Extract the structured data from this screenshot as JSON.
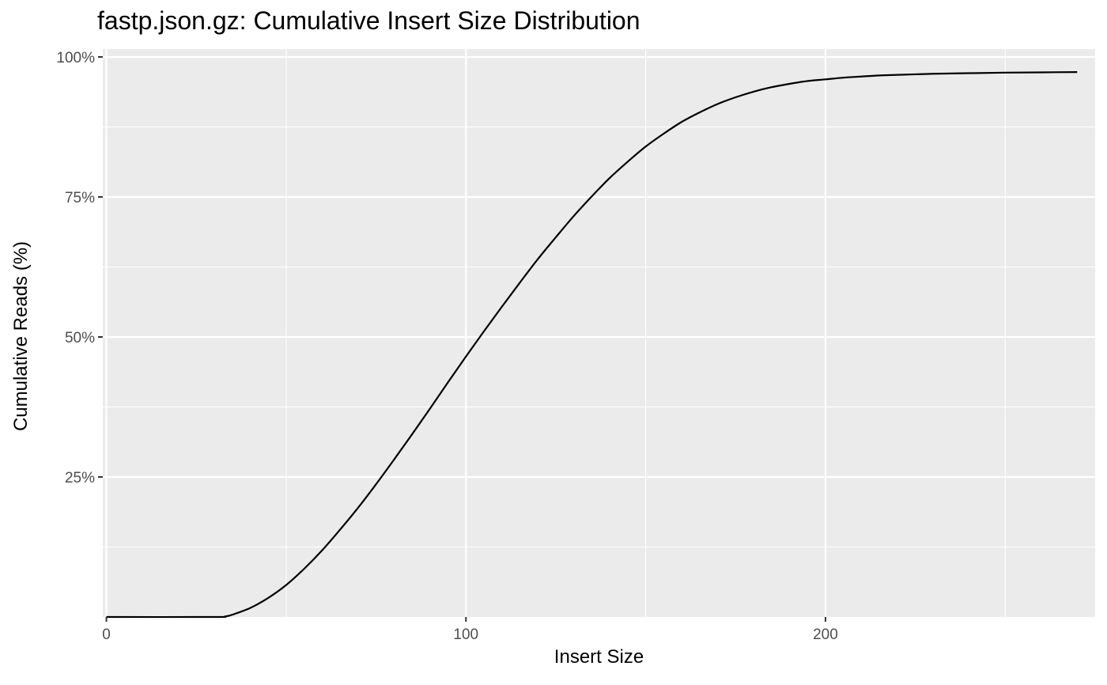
{
  "chart_data": {
    "type": "line",
    "title": "fastp.json.gz: Cumulative Insert Size Distribution",
    "xlabel": "Insert Size",
    "ylabel": "Cumulative Reads (%)",
    "xlim": [
      -1,
      275
    ],
    "ylim": [
      0,
      100
    ],
    "x_ticks": [
      0,
      100,
      200
    ],
    "x_tick_labels": [
      "0",
      "100",
      "200"
    ],
    "y_ticks": [
      25,
      50,
      75,
      100
    ],
    "y_tick_labels": [
      "25%",
      "50%",
      "75%",
      "100%"
    ],
    "grid": true,
    "legend": "none",
    "colors": {
      "panel": "#ebebeb",
      "grid": "#ffffff",
      "line": "#000000",
      "tick_label": "#4d4d4d",
      "tick_mark": "#333333"
    },
    "series": [
      {
        "x": [
          0,
          30,
          33,
          35,
          40,
          45,
          50,
          55,
          60,
          65,
          70,
          75,
          80,
          85,
          90,
          95,
          100,
          105,
          110,
          115,
          120,
          125,
          130,
          135,
          140,
          145,
          150,
          155,
          160,
          165,
          170,
          175,
          180,
          185,
          190,
          195,
          200,
          205,
          210,
          215,
          220,
          225,
          230,
          240,
          250,
          260,
          270
        ],
        "y": [
          0,
          0,
          0.1,
          0.4,
          1.6,
          3.4,
          5.7,
          8.6,
          11.9,
          15.6,
          19.5,
          23.7,
          28.1,
          32.6,
          37.2,
          41.9,
          46.5,
          51.0,
          55.4,
          59.7,
          63.9,
          67.8,
          71.6,
          75.1,
          78.4,
          81.3,
          84.0,
          86.3,
          88.4,
          90.1,
          91.6,
          92.8,
          93.8,
          94.6,
          95.2,
          95.7,
          96.0,
          96.3,
          96.5,
          96.7,
          96.8,
          96.9,
          97.0,
          97.1,
          97.2,
          97.25,
          97.3
        ]
      }
    ]
  }
}
